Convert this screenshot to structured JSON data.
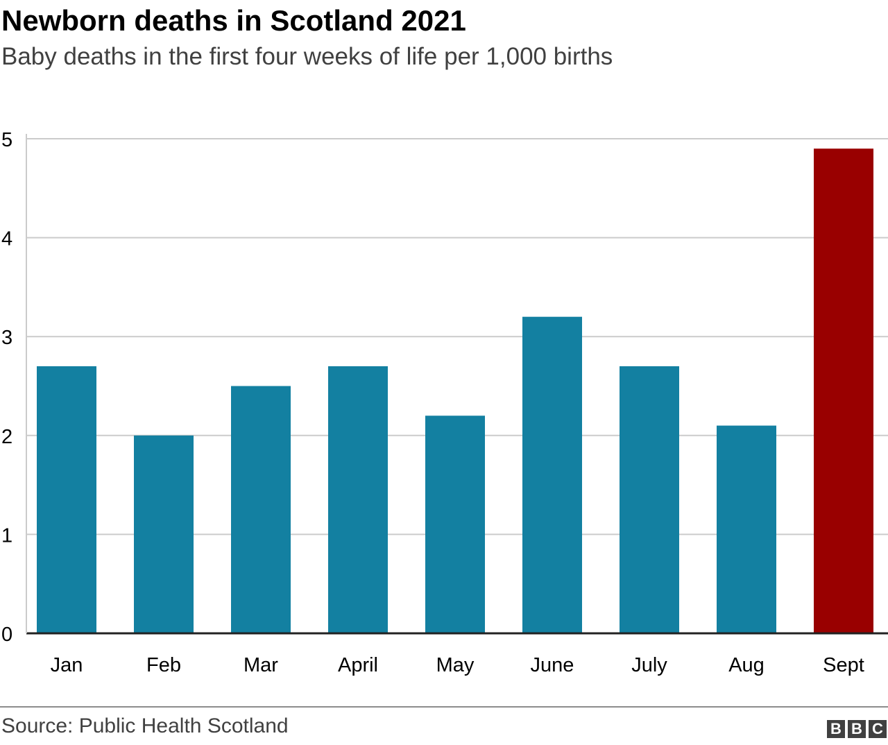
{
  "chart_data": {
    "type": "bar",
    "title": "Newborn deaths in Scotland 2021",
    "subtitle": "Baby deaths in the first four weeks of life per 1,000 births",
    "categories": [
      "Jan",
      "Feb",
      "Mar",
      "April",
      "May",
      "June",
      "July",
      "Aug",
      "Sept"
    ],
    "values": [
      2.7,
      2.0,
      2.5,
      2.7,
      2.2,
      3.2,
      2.7,
      2.1,
      4.9
    ],
    "ylim": [
      0,
      5
    ],
    "yticks": [
      0,
      1,
      2,
      3,
      4,
      5
    ],
    "ytick_labels": [
      "0",
      "1",
      "2",
      "3",
      "4",
      "5"
    ],
    "xlabel": "",
    "ylabel": "",
    "grid": true,
    "highlight_index": 8,
    "colors": {
      "bar": "#1380a1",
      "highlight": "#990000",
      "grid": "#cbcbcb",
      "axis": "#222222",
      "text": "#000000"
    }
  },
  "footer": {
    "source": "Source: Public Health Scotland",
    "logo_letters": [
      "B",
      "B",
      "C"
    ]
  }
}
